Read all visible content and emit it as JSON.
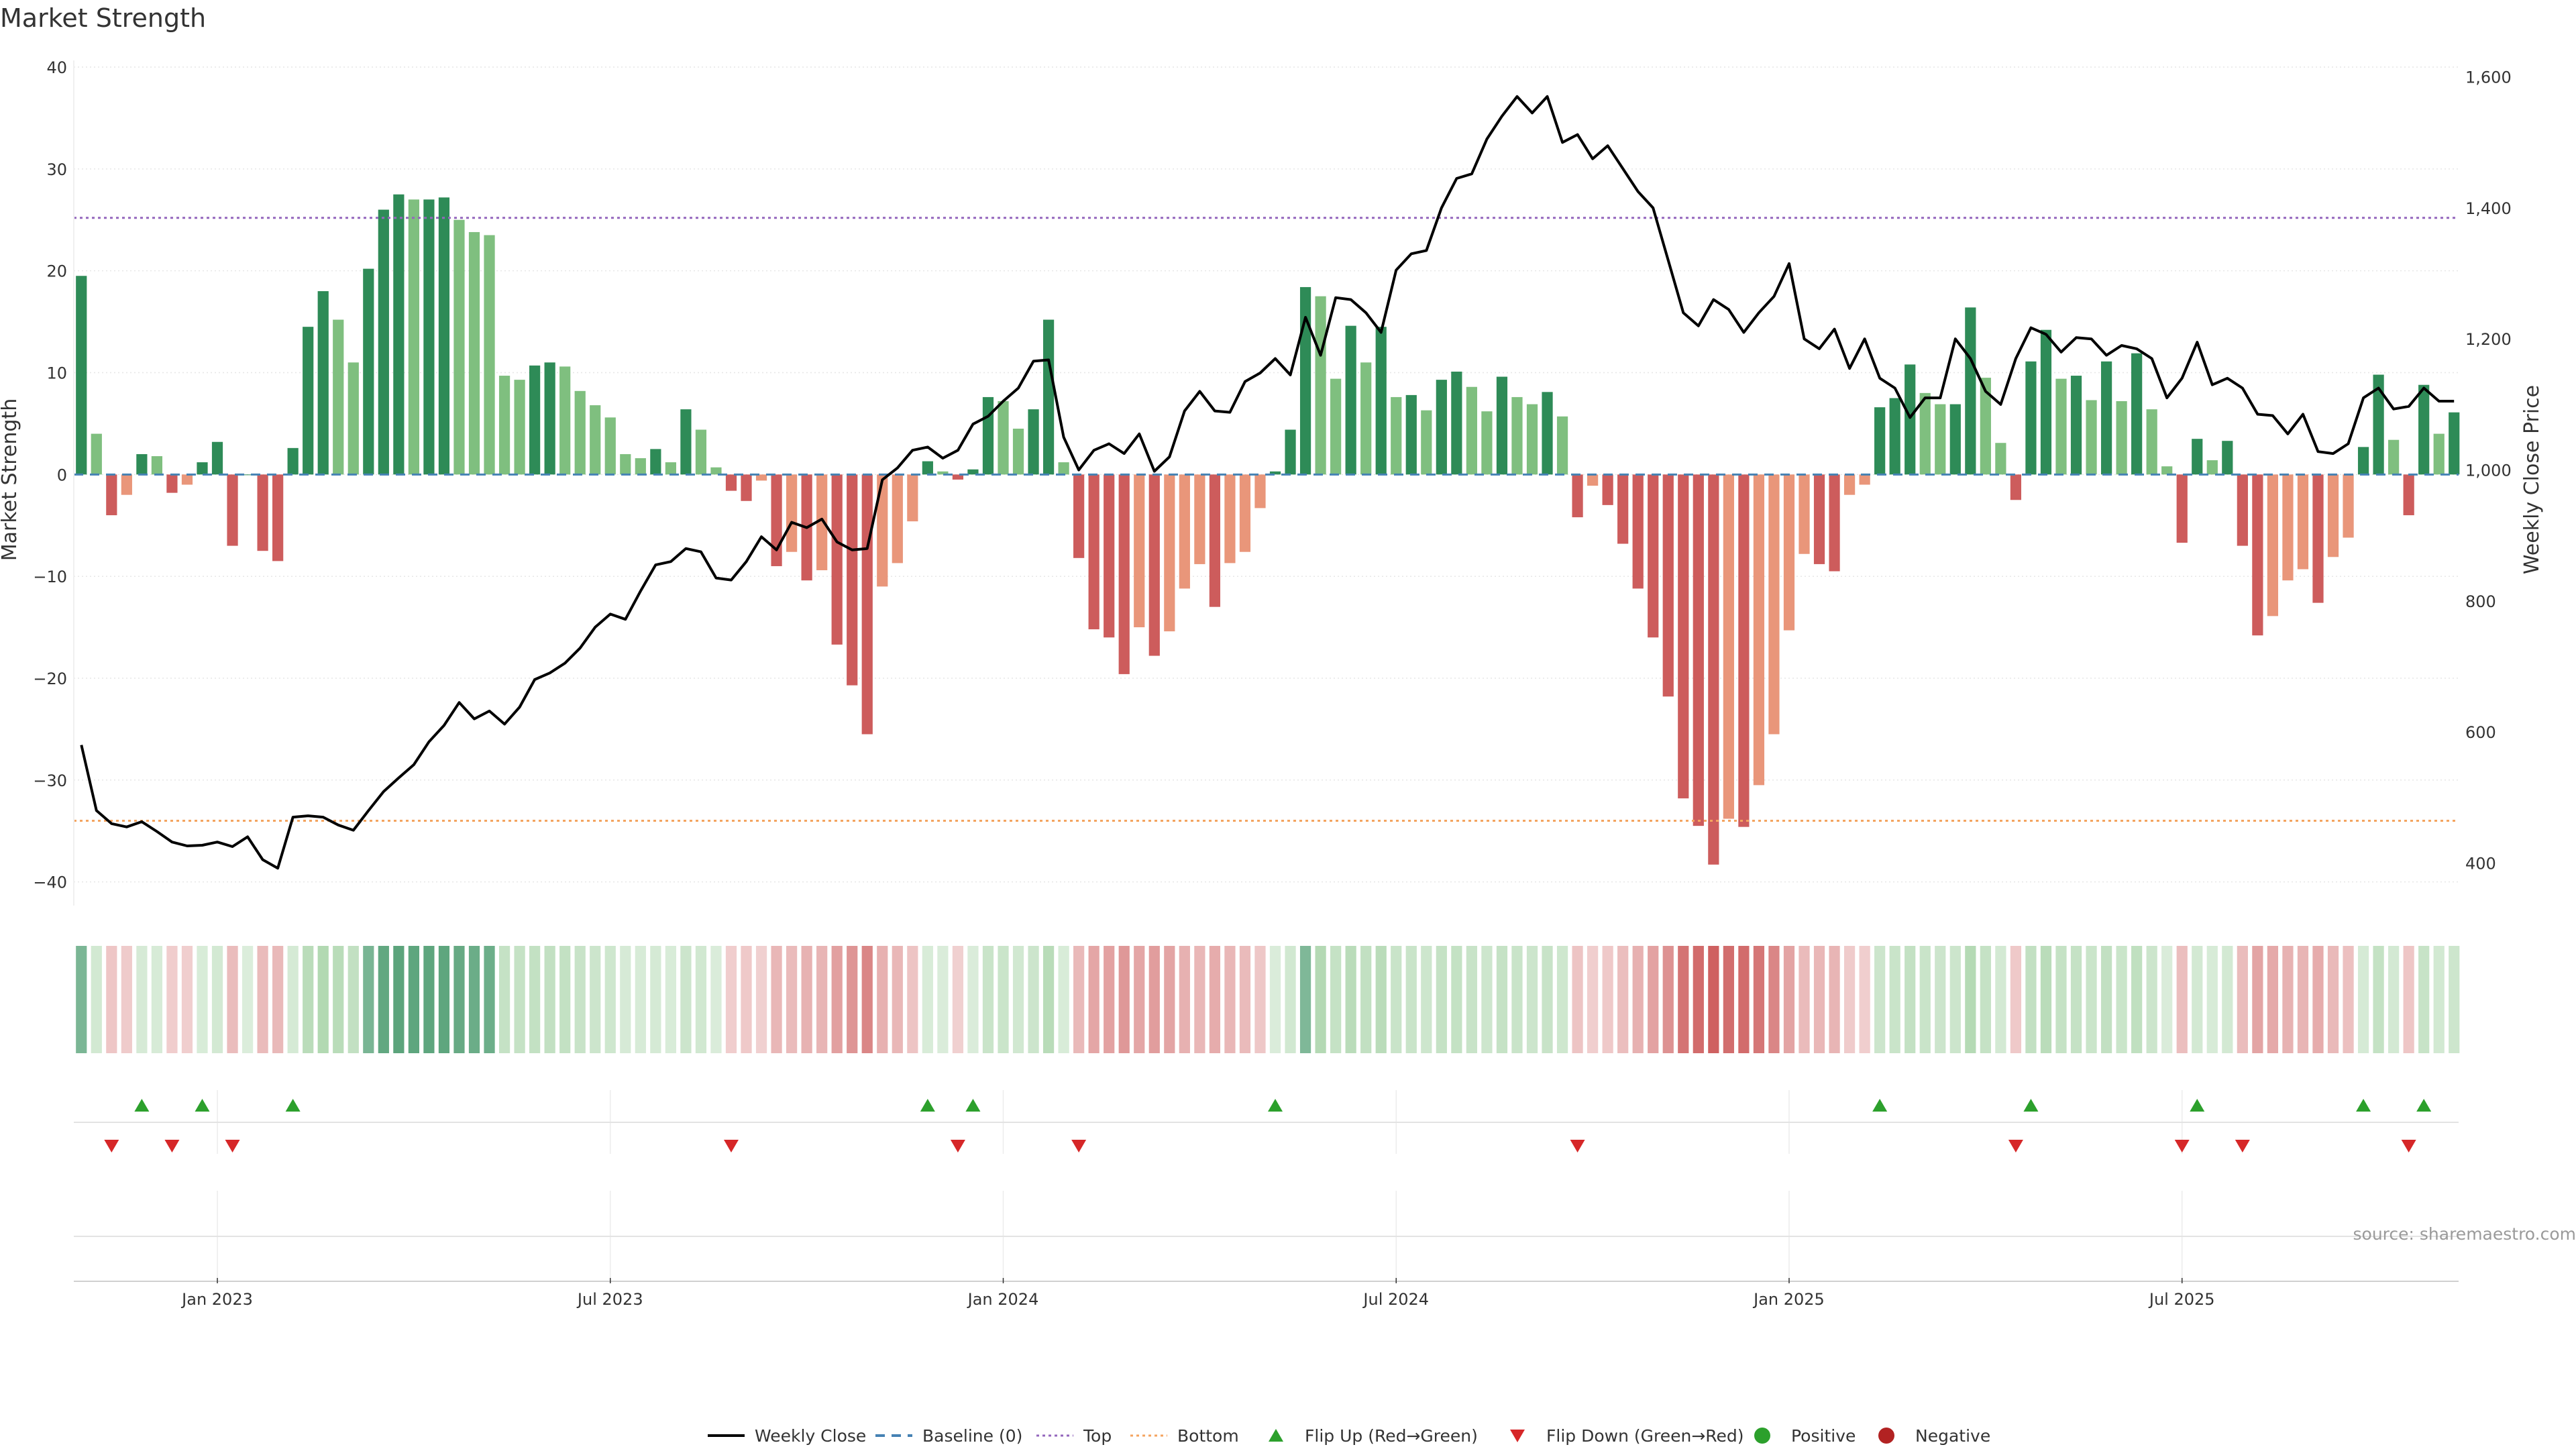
{
  "chart_data": {
    "type": "bar+line",
    "title": "Market Strength",
    "ylabel": "Market Strength",
    "y2label": "Weekly Close Price",
    "ylim": [
      -42,
      40
    ],
    "y2lim": [
      340,
      1615
    ],
    "yticks": [
      40,
      30,
      20,
      10,
      0,
      -10,
      -20,
      -30,
      -40
    ],
    "y2ticks": [
      400,
      600,
      800,
      1000,
      1200,
      1400,
      1600
    ],
    "y2tick_labels": [
      "400",
      "600",
      "800",
      "1,000",
      "1,200",
      "1,400",
      "1,600"
    ],
    "top_level": 25.2,
    "bottom_level": -34,
    "weeks": 157,
    "month_ticks": [
      {
        "label": "Jan 2023",
        "week": 9
      },
      {
        "label": "Jul 2023",
        "week": 35
      },
      {
        "label": "Jan 2024",
        "week": 61
      },
      {
        "label": "Jul 2024",
        "week": 87
      },
      {
        "label": "Jan 2025",
        "week": 113
      },
      {
        "label": "Jul 2025",
        "week": 139
      }
    ],
    "strength": [
      19.5,
      4,
      -4,
      -2,
      2,
      1.8,
      -1.8,
      -1,
      1.2,
      3.2,
      -7,
      0,
      -7.5,
      -8.5,
      2.6,
      14.5,
      18,
      15.2,
      11,
      20.2,
      26,
      27.5,
      27,
      27,
      27.2,
      25,
      23.8,
      23.5,
      9.7,
      9.3,
      10.7,
      11,
      10.6,
      8.2,
      6.8,
      5.6,
      2,
      1.6,
      2.5,
      1.2,
      6.4,
      4.4,
      0.7,
      -1.6,
      -2.6,
      -0.6,
      -9,
      -7.6,
      -10.4,
      -9.4,
      -16.7,
      -20.7,
      -25.5,
      -11,
      -8.7,
      -4.6,
      1.3,
      0.3,
      -0.5,
      0.5,
      7.6,
      7.2,
      4.5,
      6.4,
      15.2,
      1.2,
      -8.2,
      -15.2,
      -16,
      -19.6,
      -15,
      -17.8,
      -15.4,
      -11.2,
      -8.8,
      -13,
      -8.7,
      -7.6,
      -3.3,
      0.3,
      4.4,
      18.4,
      17.5,
      9.4,
      14.6,
      11,
      14.5,
      7.6,
      7.8,
      6.3,
      9.3,
      10.1,
      8.6,
      6.2,
      9.6,
      7.6,
      6.9,
      8.1,
      5.7,
      -4.2,
      -1.1,
      -3,
      -6.8,
      -11.2,
      -16,
      -21.8,
      -31.8,
      -34.5,
      -38.3,
      -33.8,
      -34.6,
      -30.5,
      -25.5,
      -15.3,
      -7.8,
      -8.8,
      -9.5,
      -2,
      -1,
      6.6,
      7.5,
      10.8,
      8,
      6.9,
      6.9,
      16.4,
      9.5,
      3.1,
      -2.5,
      11.1,
      14.2,
      9.4,
      9.7,
      7.3,
      11.1,
      7.2,
      11.9,
      6.4,
      0.8,
      -6.7,
      3.5,
      1.4,
      3.3,
      -7,
      -15.8,
      -13.9,
      -10.4,
      -9.3,
      -12.6,
      -8.1,
      -6.2,
      2.7,
      9.8,
      3.4,
      -4,
      8.8,
      4,
      6.1
    ],
    "close_price": [
      580,
      480,
      460,
      455,
      463,
      448,
      432,
      426,
      427,
      432,
      425,
      440,
      405,
      392,
      470,
      472,
      470,
      458,
      450,
      480,
      509,
      530,
      550,
      585,
      610,
      645,
      620,
      632,
      612,
      638,
      680,
      690,
      705,
      728,
      760,
      780,
      772,
      815,
      855,
      860,
      880,
      875,
      835,
      832,
      860,
      898,
      878,
      920,
      912,
      925,
      890,
      878,
      880,
      985,
      1003,
      1030,
      1035,
      1018,
      1030,
      1070,
      1082,
      1105,
      1125,
      1166,
      1168,
      1050,
      1000,
      1030,
      1040,
      1025,
      1055,
      998,
      1020,
      1090,
      1120,
      1090,
      1088,
      1135,
      1148,
      1170,
      1145,
      1233,
      1175,
      1263,
      1260,
      1240,
      1210,
      1305,
      1330,
      1335,
      1400,
      1445,
      1452,
      1505,
      1540,
      1570,
      1545,
      1570,
      1500,
      1512,
      1475,
      1495,
      1460,
      1425,
      1400,
      1320,
      1240,
      1220,
      1260,
      1245,
      1210,
      1240,
      1265,
      1315,
      1200,
      1185,
      1215,
      1155,
      1200,
      1140,
      1125,
      1080,
      1110,
      1110,
      1200,
      1170,
      1120,
      1100,
      1170,
      1217,
      1207,
      1180,
      1202,
      1200,
      1175,
      1190,
      1185,
      1170,
      1110,
      1140,
      1195,
      1130,
      1140,
      1125,
      1085,
      1083,
      1055,
      1085,
      1028,
      1025,
      1040,
      1110,
      1125,
      1093,
      1097,
      1125,
      1105,
      1105
    ],
    "series_legend": [
      {
        "name": "Weekly Close",
        "kind": "line"
      },
      {
        "name": "Baseline (0)",
        "kind": "dash"
      },
      {
        "name": "Top",
        "kind": "dot"
      },
      {
        "name": "Bottom",
        "kind": "dot"
      },
      {
        "name": "Flip Up (Red→Green)",
        "kind": "tri-up"
      },
      {
        "name": "Flip Down (Green→Red)",
        "kind": "tri-down"
      },
      {
        "name": "Positive",
        "kind": "circle"
      },
      {
        "name": "Negative",
        "kind": "circle"
      }
    ]
  },
  "source_text": "source: sharemaestro.com",
  "colors": {
    "pos_dark": "#2e8b57",
    "pos_light": "#7fbf7f",
    "neg_dark": "#cd5c5c",
    "neg_light": "#e9967a",
    "line": "#000000",
    "baseline": "#4682b4",
    "top": "#9467bd",
    "bottom": "#f4a460",
    "flip_up": "#2ca02c",
    "flip_down": "#d62728",
    "positive": "#2ca02c",
    "negative": "#b22222",
    "grid": "#e6e6e6"
  }
}
